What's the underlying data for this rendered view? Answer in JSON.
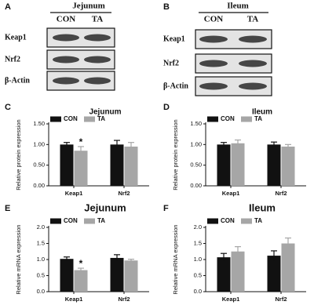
{
  "blots": [
    {
      "panel": "A",
      "title": "Jejunum",
      "lanes": [
        "CON",
        "TA"
      ],
      "rows": [
        "Keap1",
        "Nrf2",
        "β-Actin"
      ]
    },
    {
      "panel": "B",
      "title": "Ileum",
      "lanes": [
        "CON",
        "TA"
      ],
      "rows": [
        "Keap1",
        "Nrf2",
        "β-Actin"
      ]
    }
  ],
  "chart_data": [
    {
      "type": "bar",
      "panel": "C",
      "title": "Jejunum",
      "y_label": "Relative protein expression",
      "categories": [
        "Keap1",
        "Nrf2"
      ],
      "series": [
        {
          "name": "CON",
          "color": "#111111",
          "values": [
            1.0,
            1.0
          ],
          "errors": [
            0.05,
            0.1
          ]
        },
        {
          "name": "TA",
          "color": "#a6a6a6",
          "values": [
            0.85,
            0.95
          ],
          "errors": [
            0.1,
            0.1
          ]
        }
      ],
      "annotations": [
        {
          "text": "*",
          "series": 1,
          "category": 0
        }
      ],
      "ylim": [
        0,
        1.5
      ],
      "yticks": [
        {
          "value": 0,
          "label": "0.00"
        },
        {
          "value": 0.5,
          "label": "0.50"
        },
        {
          "value": 1,
          "label": "1.00"
        },
        {
          "value": 1.5,
          "label": "1.50"
        }
      ]
    },
    {
      "type": "bar",
      "panel": "D",
      "title": "Ileum",
      "y_label": "Relative protein expression",
      "categories": [
        "Keap1",
        "Nrf2"
      ],
      "series": [
        {
          "name": "CON",
          "color": "#111111",
          "values": [
            1.0,
            1.0
          ],
          "errors": [
            0.05,
            0.06
          ]
        },
        {
          "name": "TA",
          "color": "#a6a6a6",
          "values": [
            1.03,
            0.95
          ],
          "errors": [
            0.08,
            0.05
          ]
        }
      ],
      "annotations": [],
      "ylim": [
        0,
        1.5
      ],
      "yticks": [
        {
          "value": 0,
          "label": "0.00"
        },
        {
          "value": 0.5,
          "label": "0.50"
        },
        {
          "value": 1,
          "label": "1.00"
        },
        {
          "value": 1.5,
          "label": "1.50"
        }
      ]
    },
    {
      "type": "bar",
      "panel": "E",
      "title": "Jejunum",
      "y_label": "Relative mRNA expression",
      "categories": [
        "Keap1",
        "Nrf2"
      ],
      "series": [
        {
          "name": "CON",
          "color": "#111111",
          "values": [
            1.02,
            1.05
          ],
          "errors": [
            0.06,
            0.1
          ]
        },
        {
          "name": "TA",
          "color": "#a6a6a6",
          "values": [
            0.67,
            0.97
          ],
          "errors": [
            0.06,
            0.04
          ]
        }
      ],
      "annotations": [
        {
          "text": "*",
          "series": 1,
          "category": 0
        }
      ],
      "ylim": [
        0,
        2
      ],
      "yticks": [
        {
          "value": 0,
          "label": "0.0"
        },
        0.5,
        {
          "value": 1,
          "label": "1.0"
        },
        1.5,
        {
          "value": 2,
          "label": "2.0"
        }
      ]
    },
    {
      "type": "bar",
      "panel": "F",
      "title": "Ileum",
      "y_label": "Relative mRNA expression",
      "categories": [
        "Keap1",
        "Nrf2"
      ],
      "series": [
        {
          "name": "CON",
          "color": "#111111",
          "values": [
            1.07,
            1.12
          ],
          "errors": [
            0.12,
            0.15
          ]
        },
        {
          "name": "TA",
          "color": "#a6a6a6",
          "values": [
            1.25,
            1.5
          ],
          "errors": [
            0.15,
            0.17
          ]
        }
      ],
      "annotations": [],
      "ylim": [
        0,
        2
      ],
      "yticks": [
        {
          "value": 0,
          "label": "0.0"
        },
        0.5,
        {
          "value": 1,
          "label": "1.0"
        },
        1.5,
        {
          "value": 2,
          "label": "2.0"
        }
      ]
    }
  ]
}
